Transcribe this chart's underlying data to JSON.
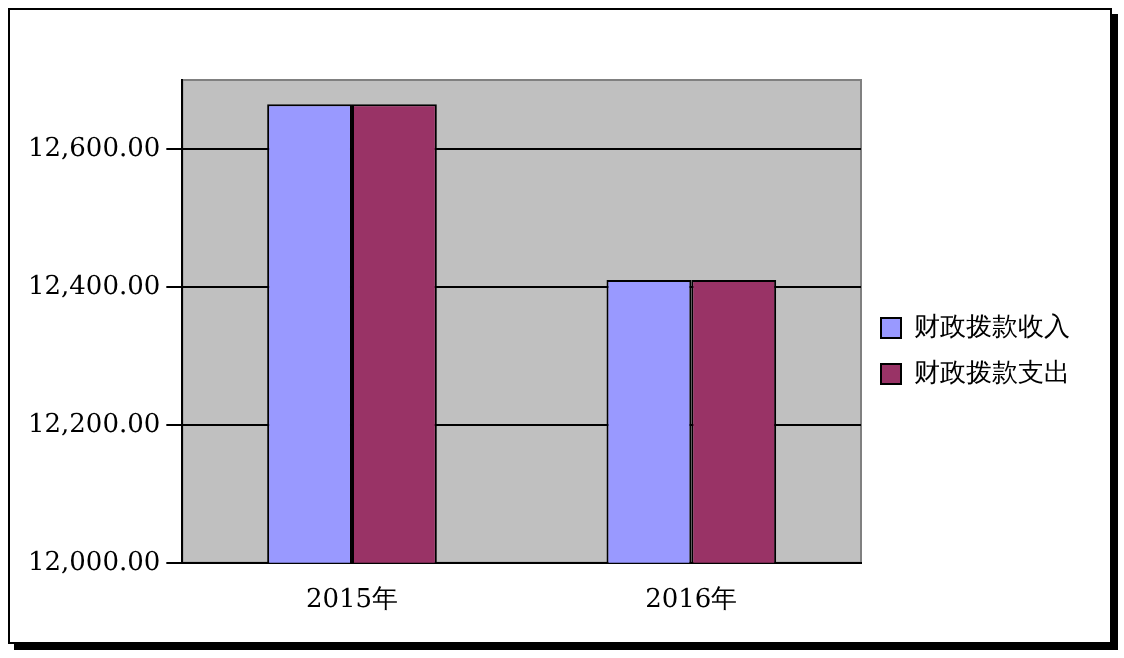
{
  "chart_data": {
    "type": "bar",
    "categories": [
      "2015年",
      "2016年"
    ],
    "series": [
      {
        "name": "财政拨款收入",
        "color": "#9999ff",
        "values": [
          12665,
          12410
        ]
      },
      {
        "name": "财政拨款支出",
        "color": "#993366",
        "values": [
          12665,
          12410
        ]
      }
    ],
    "ylim": [
      12000,
      12700
    ],
    "yticks": [
      {
        "value": 12000,
        "label": "12,000.00"
      },
      {
        "value": 12200,
        "label": "12,200.00"
      },
      {
        "value": 12400,
        "label": "12,400.00"
      },
      {
        "value": 12600,
        "label": "12,600.00"
      }
    ],
    "grid": "y",
    "legend": "right"
  }
}
